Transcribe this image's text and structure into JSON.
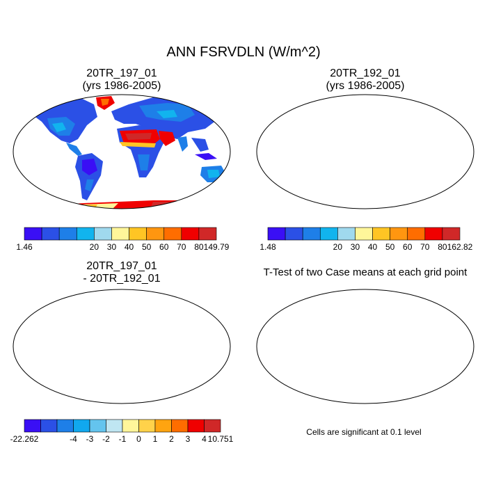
{
  "title": "ANN FSRVDLN (W/m^2)",
  "panels": [
    {
      "id": "case1",
      "title_line1": "20TR_197_01",
      "title_line2": "(yrs 1986-2005)",
      "colorbar": {
        "min_label": "1.46",
        "max_label": "149.79",
        "tick_labels": [
          "20",
          "30",
          "40",
          "50",
          "60",
          "70",
          "80"
        ],
        "colors": [
          "#3a0ff5",
          "#2b50e6",
          "#1e7fe8",
          "#11b4ee",
          "#a0d9ee",
          "#fff69a",
          "#ffc524",
          "#ff9610",
          "#ff6d00",
          "#f00000",
          "#d02828"
        ]
      }
    },
    {
      "id": "case2",
      "title_line1": "20TR_192_01",
      "title_line2": "(yrs 1986-2005)",
      "colorbar": {
        "min_label": "1.48",
        "max_label": "162.82",
        "tick_labels": [
          "20",
          "30",
          "40",
          "50",
          "60",
          "70",
          "80"
        ],
        "colors": [
          "#3a0ff5",
          "#2b50e6",
          "#1e7fe8",
          "#11b4ee",
          "#a0d9ee",
          "#fff69a",
          "#ffc524",
          "#ff9610",
          "#ff6d00",
          "#f00000",
          "#d02828"
        ]
      }
    },
    {
      "id": "difference",
      "title_line1": "20TR_197_01",
      "title_line2": "- 20TR_192_01",
      "colorbar": {
        "min_label": "-22.262",
        "max_label": "10.751",
        "tick_labels": [
          "-4",
          "-3",
          "-2",
          "-1",
          "0",
          "1",
          "2",
          "3",
          "4"
        ],
        "colors": [
          "#3a0ff5",
          "#2b50e6",
          "#1e7fe8",
          "#11a8ee",
          "#64c4ee",
          "#bfe6f2",
          "#fff69a",
          "#ffd24a",
          "#ffa410",
          "#ff6d00",
          "#f00000",
          "#d02828"
        ]
      }
    },
    {
      "id": "ttest",
      "title": "T-Test of two Case means at each grid point",
      "note": "Cells are significant at 0.1 level",
      "color": "#e60000"
    }
  ]
}
